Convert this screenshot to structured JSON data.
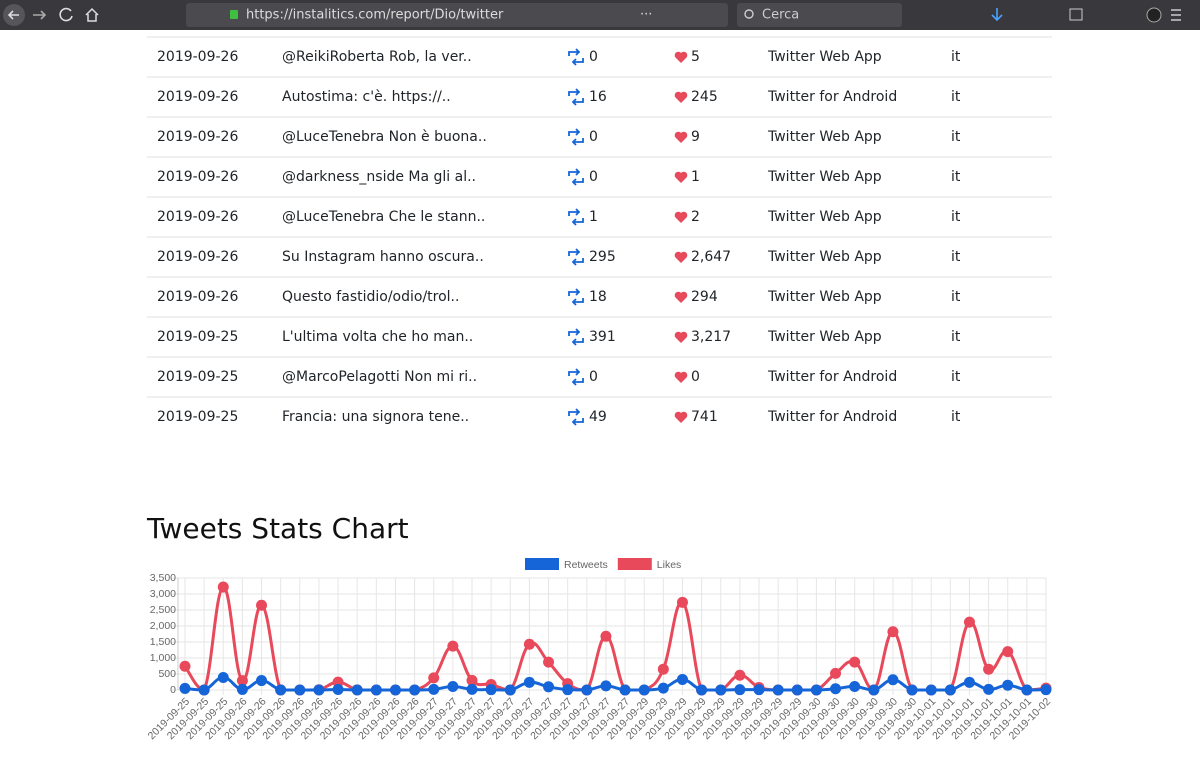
{
  "browser": {
    "url": "https://instalitics.com/report/Dio/twitter",
    "search": "Cerca"
  },
  "table": {
    "rows": [
      [
        "2019-09-26",
        "@ReikiRoberta Rob, la ver..",
        "0",
        "5",
        "Twitter Web App",
        "it"
      ],
      [
        "2019-09-26",
        "Autostima: c'è. https://..",
        "16",
        "245",
        "Twitter for Android",
        "it"
      ],
      [
        "2019-09-26",
        "@LuceTenebra Non è buona..",
        "0",
        "9",
        "Twitter Web App",
        "it"
      ],
      [
        "2019-09-26",
        "@darkness_nside Ma gli al..",
        "0",
        "1",
        "Twitter Web App",
        "it"
      ],
      [
        "2019-09-26",
        "@LuceTenebra Che le stann..",
        "1",
        "2",
        "Twitter Web App",
        "it"
      ],
      [
        "2019-09-26",
        "Su Instagram hanno oscura..",
        "295",
        "2,647",
        "Twitter Web App",
        "it"
      ],
      [
        "2019-09-26",
        "Questo fastidio/odio/trol..",
        "18",
        "294",
        "Twitter Web App",
        "it"
      ],
      [
        "2019-09-25",
        "L'ultima volta che ho man..",
        "391",
        "3,217",
        "Twitter Web App",
        "it"
      ],
      [
        "2019-09-25",
        "@MarcoPelagotti Non mi ri..",
        "0",
        "0",
        "Twitter for Android",
        "it"
      ],
      [
        "2019-09-25",
        "Francia: una signora tene..",
        "49",
        "741",
        "Twitter for Android",
        "it"
      ]
    ]
  },
  "chart_data": {
    "type": "line",
    "title": "Tweets Stats Chart",
    "categories": [
      "2019-09-25",
      "2019-09-25",
      "2019-09-25",
      "2019-09-26",
      "2019-09-26",
      "2019-09-26",
      "2019-09-26",
      "2019-09-26",
      "2019-09-26",
      "2019-09-26",
      "2019-09-26",
      "2019-09-26",
      "2019-09-26",
      "2019-09-27",
      "2019-09-27",
      "2019-09-27",
      "2019-09-27",
      "2019-09-27",
      "2019-09-27",
      "2019-09-27",
      "2019-09-27",
      "2019-09-27",
      "2019-09-27",
      "2019-09-27",
      "2019-09-29",
      "2019-09-29",
      "2019-09-29",
      "2019-09-29",
      "2019-09-29",
      "2019-09-29",
      "2019-09-29",
      "2019-09-29",
      "2019-09-29",
      "2019-09-30",
      "2019-09-30",
      "2019-09-30",
      "2019-09-30",
      "2019-09-30",
      "2019-09-30",
      "2019-10-01",
      "2019-10-01",
      "2019-10-01",
      "2019-10-01",
      "2019-10-01",
      "2019-10-01",
      "2019-10-02"
    ],
    "series": [
      {
        "name": "Retweets",
        "color": "#1565d8",
        "values": [
          49,
          0,
          391,
          18,
          295,
          1,
          0,
          0,
          16,
          0,
          0,
          0,
          0,
          20,
          110,
          20,
          10,
          0,
          240,
          100,
          10,
          0,
          130,
          0,
          0,
          60,
          330,
          0,
          0,
          10,
          10,
          0,
          0,
          0,
          40,
          110,
          0,
          320,
          0,
          0,
          0,
          240,
          20,
          150,
          0,
          10
        ]
      },
      {
        "name": "Likes",
        "color": "#e8495b",
        "values": [
          741,
          0,
          3217,
          294,
          2647,
          2,
          1,
          9,
          245,
          5,
          0,
          0,
          0,
          380,
          1370,
          300,
          170,
          0,
          1430,
          870,
          200,
          0,
          1680,
          0,
          0,
          650,
          2740,
          0,
          0,
          460,
          80,
          0,
          0,
          0,
          520,
          870,
          0,
          1820,
          0,
          0,
          0,
          2120,
          650,
          1200,
          0,
          60
        ]
      }
    ],
    "ylim": [
      0,
      3500
    ],
    "yticks": [
      0,
      500,
      {
        "value": 1000,
        "label": "1,000"
      },
      {
        "value": 1500,
        "label": "1,500"
      },
      {
        "value": 2000,
        "label": "2,000"
      },
      {
        "value": 2500,
        "label": "2,500"
      },
      {
        "value": 3000,
        "label": "3,000"
      },
      {
        "value": 3500,
        "label": "3,500"
      }
    ],
    "grid": true
  }
}
